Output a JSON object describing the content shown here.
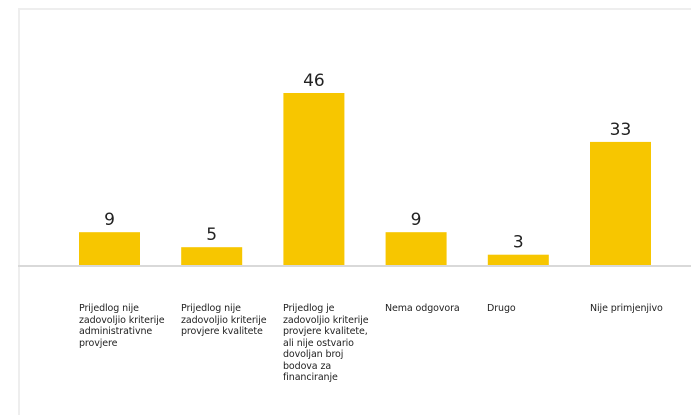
{
  "chart_data": {
    "type": "bar",
    "categories": [
      "Prijedlog nije zadovoljio kriterije administrativne provjere",
      "Prijedlog nije zadovoljio kriterije provjere kvalitete",
      "Prijedlog je zadovoljio kriterije provjere kvalitete, ali nije ostvario dovoljan broj bodova za financiranje",
      "Nema odgovora",
      "Drugo",
      "Nije primjenjivo"
    ],
    "values": [
      9,
      5,
      46,
      9,
      3,
      33
    ],
    "title": "",
    "xlabel": "",
    "ylabel": "",
    "ylim": [
      0,
      46
    ],
    "grid": false,
    "legend": "none",
    "colors": {
      "bar": "#F7C600",
      "baseline": "#d9d9d9",
      "value_label": "#222222",
      "frame": "#eeeeee"
    }
  }
}
